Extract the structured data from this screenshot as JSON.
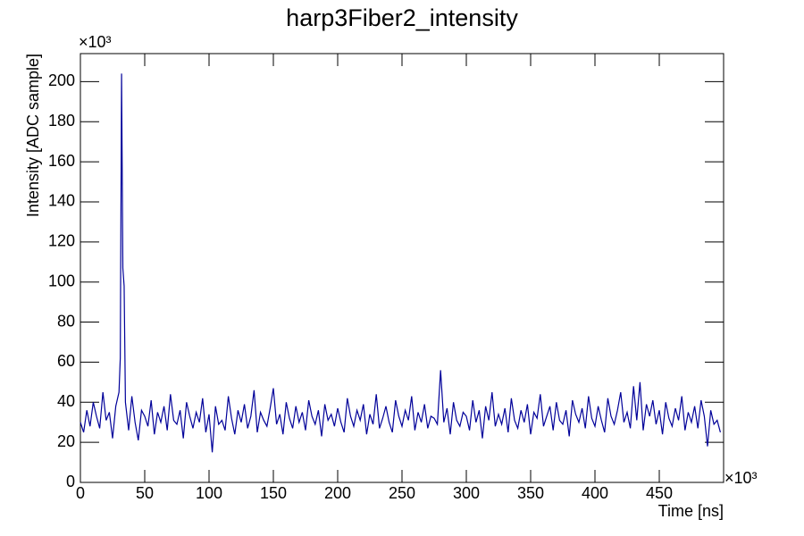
{
  "chart_data": {
    "type": "line",
    "title": "harp3Fiber2_intensity",
    "x_label": "Time [ns]",
    "y_label": "Intensity [ADC sample]",
    "x_multiplier": "×10³",
    "y_multiplier": "×10³",
    "color": "#000099",
    "xlim": [
      0,
      500
    ],
    "ylim": [
      0,
      214
    ],
    "xticks": [
      0,
      50,
      100,
      150,
      200,
      250,
      300,
      350,
      400,
      450
    ],
    "yticks": [
      0,
      20,
      40,
      60,
      80,
      100,
      120,
      140,
      160,
      180,
      200
    ],
    "x": [
      0,
      2.5,
      5,
      7.5,
      10,
      12.5,
      15,
      17.5,
      20,
      22.5,
      25,
      27.5,
      30,
      31,
      32,
      33,
      34,
      35,
      37.5,
      40,
      42.5,
      45,
      47.5,
      50,
      52.5,
      55,
      57.5,
      60,
      62.5,
      65,
      67.5,
      70,
      72.5,
      75,
      77.5,
      80,
      82.5,
      85,
      87.5,
      90,
      92.5,
      95,
      97.5,
      100,
      102.5,
      105,
      107.5,
      110,
      112.5,
      115,
      117.5,
      120,
      122.5,
      125,
      127.5,
      130,
      132.5,
      135,
      137.5,
      140,
      142.5,
      145,
      147.5,
      150,
      152.5,
      155,
      157.5,
      160,
      162.5,
      165,
      167.5,
      170,
      172.5,
      175,
      177.5,
      180,
      182.5,
      185,
      187.5,
      190,
      192.5,
      195,
      197.5,
      200,
      202.5,
      205,
      207.5,
      210,
      212.5,
      215,
      217.5,
      220,
      222.5,
      225,
      227.5,
      230,
      232.5,
      235,
      237.5,
      240,
      242.5,
      245,
      247.5,
      250,
      252.5,
      255,
      257.5,
      260,
      262.5,
      265,
      267.5,
      270,
      272.5,
      275,
      277.5,
      280,
      282.5,
      285,
      287.5,
      290,
      292.5,
      295,
      297.5,
      300,
      302.5,
      305,
      307.5,
      310,
      312.5,
      315,
      317.5,
      320,
      322.5,
      325,
      327.5,
      330,
      332.5,
      335,
      337.5,
      340,
      342.5,
      345,
      347.5,
      350,
      352.5,
      355,
      357.5,
      360,
      362.5,
      365,
      367.5,
      370,
      372.5,
      375,
      377.5,
      380,
      382.5,
      385,
      387.5,
      390,
      392.5,
      395,
      397.5,
      400,
      402.5,
      405,
      407.5,
      410,
      412.5,
      415,
      417.5,
      420,
      422.5,
      425,
      427.5,
      430,
      432.5,
      435,
      437.5,
      440,
      442.5,
      445,
      447.5,
      450,
      452.5,
      455,
      457.5,
      460,
      462.5,
      465,
      467.5,
      470,
      472.5,
      475,
      477.5,
      480,
      482.5,
      485,
      487.5,
      490,
      492.5,
      495,
      497.5
    ],
    "values": [
      30,
      25,
      36,
      28,
      40,
      33,
      27,
      45,
      31,
      35,
      22,
      38,
      45,
      62,
      204,
      107,
      98,
      40,
      26,
      43,
      30,
      21,
      36,
      33,
      28,
      41,
      24,
      35,
      30,
      38,
      26,
      44,
      31,
      29,
      36,
      22,
      40,
      33,
      27,
      35,
      30,
      42,
      25,
      34,
      15,
      38,
      29,
      31,
      26,
      43,
      32,
      24,
      36,
      30,
      39,
      27,
      33,
      46,
      25,
      35,
      31,
      28,
      37,
      47,
      29,
      34,
      24,
      40,
      32,
      27,
      38,
      30,
      35,
      26,
      41,
      33,
      29,
      36,
      23,
      39,
      31,
      34,
      28,
      37,
      30,
      25,
      42,
      33,
      28,
      36,
      31,
      39,
      24,
      34,
      29,
      44,
      27,
      32,
      38,
      30,
      25,
      41,
      33,
      28,
      36,
      31,
      43,
      26,
      35,
      30,
      39,
      27,
      33,
      32,
      29,
      56,
      30,
      37,
      24,
      40,
      31,
      28,
      35,
      33,
      26,
      41,
      30,
      36,
      22,
      38,
      31,
      45,
      28,
      34,
      29,
      37,
      25,
      42,
      31,
      27,
      36,
      30,
      39,
      24,
      35,
      32,
      44,
      28,
      33,
      38,
      26,
      40,
      31,
      29,
      36,
      23,
      41,
      34,
      30,
      37,
      27,
      43,
      32,
      28,
      38,
      31,
      25,
      42,
      33,
      29,
      36,
      45,
      30,
      35,
      27,
      48,
      31,
      50,
      26,
      39,
      33,
      41,
      29,
      36,
      24,
      40,
      32,
      28,
      37,
      31,
      43,
      26,
      35,
      30,
      38,
      27,
      41,
      33,
      18,
      36,
      29,
      31,
      25
    ]
  }
}
